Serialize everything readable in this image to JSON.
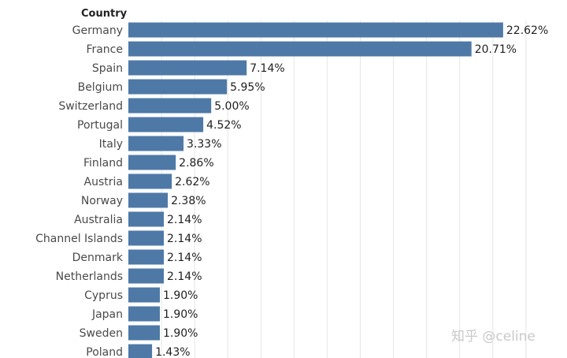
{
  "chart_data": {
    "type": "bar",
    "orientation": "horizontal",
    "category_header": "Country",
    "categories": [
      "Germany",
      "France",
      "Spain",
      "Belgium",
      "Switzerland",
      "Portugal",
      "Italy",
      "Finland",
      "Austria",
      "Norway",
      "Australia",
      "Channel Islands",
      "Denmark",
      "Netherlands",
      "Cyprus",
      "Japan",
      "Sweden",
      "Poland"
    ],
    "values": [
      22.62,
      20.71,
      7.14,
      5.95,
      5.0,
      4.52,
      3.33,
      2.86,
      2.62,
      2.38,
      2.14,
      2.14,
      2.14,
      2.14,
      1.9,
      1.9,
      1.9,
      1.43
    ],
    "value_labels": [
      "22.62%",
      "20.71%",
      "7.14%",
      "5.95%",
      "5.00%",
      "4.52%",
      "3.33%",
      "2.86%",
      "2.62%",
      "2.38%",
      "2.14%",
      "2.14%",
      "2.14%",
      "2.14%",
      "1.90%",
      "1.90%",
      "1.90%",
      "1.43%"
    ],
    "xlim": [
      0,
      26
    ],
    "x_gridline_step": 2,
    "grid": "vertical",
    "bar_color": "#4e79a7",
    "grid_color": "#e6e6e6"
  },
  "watermark": {
    "text": "知乎 @celine"
  }
}
